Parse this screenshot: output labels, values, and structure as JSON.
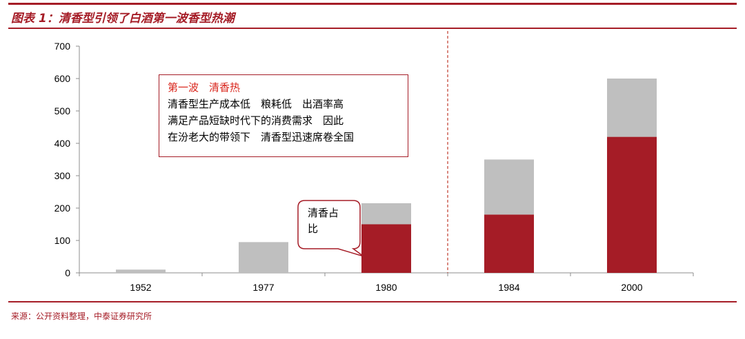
{
  "title": "图表 1：清香型引领了白酒第一波香型热潮",
  "source": "来源：公开资料整理，中泰证券研究所",
  "colors": {
    "accent": "#a51c26",
    "total": "#bfbfbf",
    "share": "#a51c26"
  },
  "chart_data": {
    "type": "bar",
    "stacked": true,
    "categories": [
      "1952",
      "1977",
      "1980",
      "1984",
      "2000"
    ],
    "series": [
      {
        "name": "清香占比",
        "values": [
          0,
          0,
          150,
          180,
          420
        ]
      },
      {
        "name": "",
        "values": [
          10,
          95,
          65,
          170,
          180
        ]
      }
    ],
    "totals": [
      10,
      95,
      215,
      350,
      600
    ],
    "ylim": [
      0,
      700
    ],
    "yticks": [
      "0",
      "100",
      "200",
      "300",
      "400",
      "500",
      "600",
      "700"
    ],
    "grid": false,
    "divider_after_category": "1980",
    "annotation": {
      "title": "第一波　清香热",
      "lines": [
        "清香型生产成本低　粮耗低　出酒率高",
        "满足产品短缺时代下的消费需求　因此",
        "在汾老大的带领下　清香型迅速席卷全国"
      ]
    },
    "callout": [
      "清香占",
      "比"
    ]
  }
}
